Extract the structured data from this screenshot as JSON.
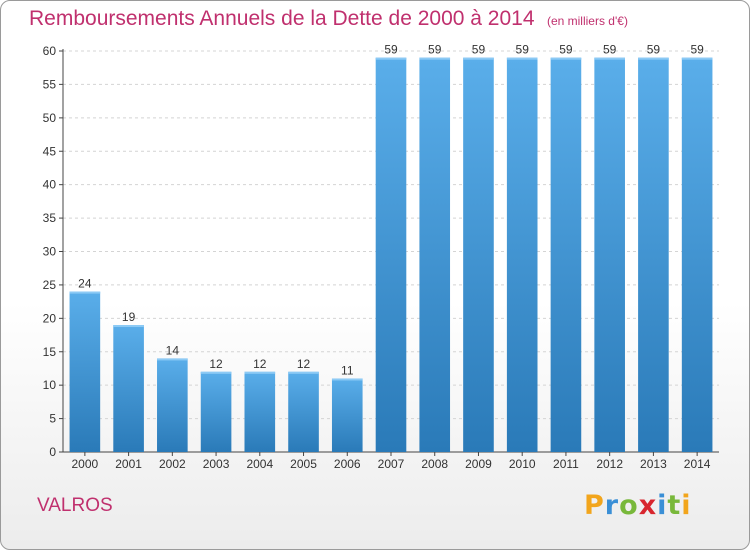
{
  "header": {
    "title": "Remboursements Annuels de la Dette de 2000 à 2014",
    "subtitle": "(en milliers d'€)"
  },
  "footer": {
    "commune": "VALROS",
    "logo_letters": [
      "P",
      "r",
      "o",
      "x",
      "i",
      "t",
      "i"
    ],
    "logo_colors": [
      "#f2a51c",
      "#3a8fd6",
      "#78b83a",
      "#d8262e",
      "#3a8fd6",
      "#78b83a",
      "#f2a51c"
    ]
  },
  "chart_data": {
    "type": "bar",
    "categories": [
      "2000",
      "2001",
      "2002",
      "2003",
      "2004",
      "2005",
      "2006",
      "2007",
      "2008",
      "2009",
      "2010",
      "2011",
      "2012",
      "2013",
      "2014"
    ],
    "values": [
      24,
      19,
      14,
      12,
      12,
      12,
      11,
      59,
      59,
      59,
      59,
      59,
      59,
      59,
      59
    ],
    "title": "Remboursements Annuels de la Dette de 2000 à 2014",
    "subtitle": "(en milliers d'€)",
    "xlabel": "",
    "ylabel": "",
    "ylim": [
      0,
      60
    ],
    "yticks": [
      0,
      5,
      10,
      15,
      20,
      25,
      30,
      35,
      40,
      45,
      50,
      55,
      60
    ],
    "grid": true,
    "bar_color_top": "#5aaeea",
    "bar_color_bottom": "#2a7ab8"
  }
}
